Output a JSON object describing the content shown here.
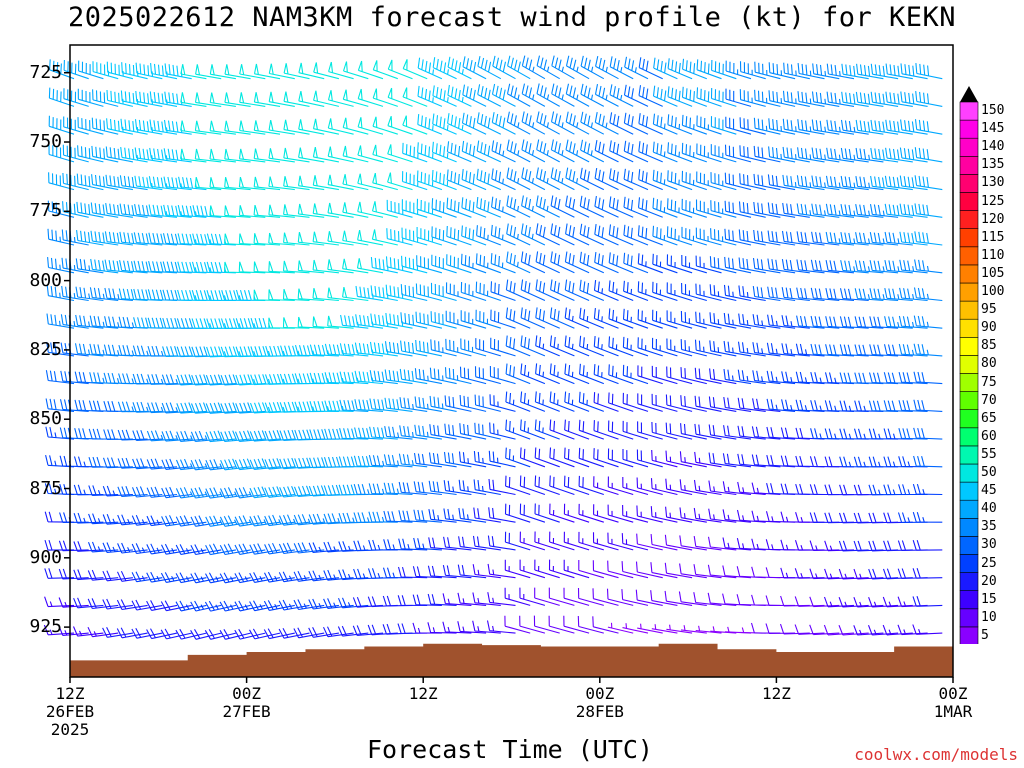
{
  "title": "2025022612 NAM3KM forecast wind profile (kt) for KEKN",
  "credit": "coolwx.com/models",
  "chart_data": {
    "type": "wind-barb-timeheight",
    "xlabel": "Forecast Time (UTC)",
    "ylabel": "",
    "x_ticks": [
      {
        "hour": 0,
        "lines": [
          "12Z",
          "26FEB",
          "2025"
        ]
      },
      {
        "hour": 12,
        "lines": [
          "00Z",
          "27FEB"
        ]
      },
      {
        "hour": 24,
        "lines": [
          "12Z"
        ]
      },
      {
        "hour": 36,
        "lines": [
          "00Z",
          "28FEB"
        ]
      },
      {
        "hour": 48,
        "lines": [
          "12Z"
        ]
      },
      {
        "hour": 60,
        "lines": [
          "00Z",
          "1MAR"
        ]
      }
    ],
    "xlim": [
      0,
      60
    ],
    "y_ticks": [
      "725",
      "750",
      "775",
      "800",
      "825",
      "850",
      "875",
      "900",
      "925"
    ],
    "y_tick_values": [
      725,
      750,
      775,
      800,
      825,
      850,
      875,
      900,
      925
    ],
    "ylim": [
      715,
      943
    ],
    "y_inverted": true,
    "colorbar": {
      "levels": [
        "5",
        "10",
        "15",
        "20",
        "25",
        "30",
        "35",
        "40",
        "45",
        "50",
        "55",
        "60",
        "65",
        "70",
        "75",
        "80",
        "85",
        "90",
        "95",
        "100",
        "105",
        "110",
        "115",
        "120",
        "125",
        "130",
        "135",
        "140",
        "145",
        "150"
      ],
      "colors": [
        "#8a00ff",
        "#6600ff",
        "#3d00ff",
        "#1a1aff",
        "#0040ff",
        "#0066ff",
        "#0088ff",
        "#00a8ff",
        "#00c8ff",
        "#00e8e0",
        "#00f8b0",
        "#00ff70",
        "#20ff20",
        "#60ff00",
        "#a0ff00",
        "#e0ff00",
        "#ffff00",
        "#ffe000",
        "#ffc000",
        "#ffa000",
        "#ff8000",
        "#ff6000",
        "#ff4000",
        "#ff2020",
        "#ff0040",
        "#ff0070",
        "#ff00a0",
        "#ff00c8",
        "#ff00e8",
        "#ff40ff"
      ]
    },
    "surface_pressure": [
      {
        "hour": 0,
        "p": 937
      },
      {
        "hour": 4,
        "p": 937
      },
      {
        "hour": 8,
        "p": 935
      },
      {
        "hour": 12,
        "p": 934
      },
      {
        "hour": 16,
        "p": 933
      },
      {
        "hour": 20,
        "p": 932
      },
      {
        "hour": 24,
        "p": 931
      },
      {
        "hour": 28,
        "p": 931.5
      },
      {
        "hour": 32,
        "p": 932
      },
      {
        "hour": 36,
        "p": 932
      },
      {
        "hour": 40,
        "p": 931
      },
      {
        "hour": 44,
        "p": 933
      },
      {
        "hour": 48,
        "p": 934
      },
      {
        "hour": 52,
        "p": 934
      },
      {
        "hour": 56,
        "p": 932
      },
      {
        "hour": 60,
        "p": 929
      }
    ],
    "terrain_color": "#a0522d"
  }
}
